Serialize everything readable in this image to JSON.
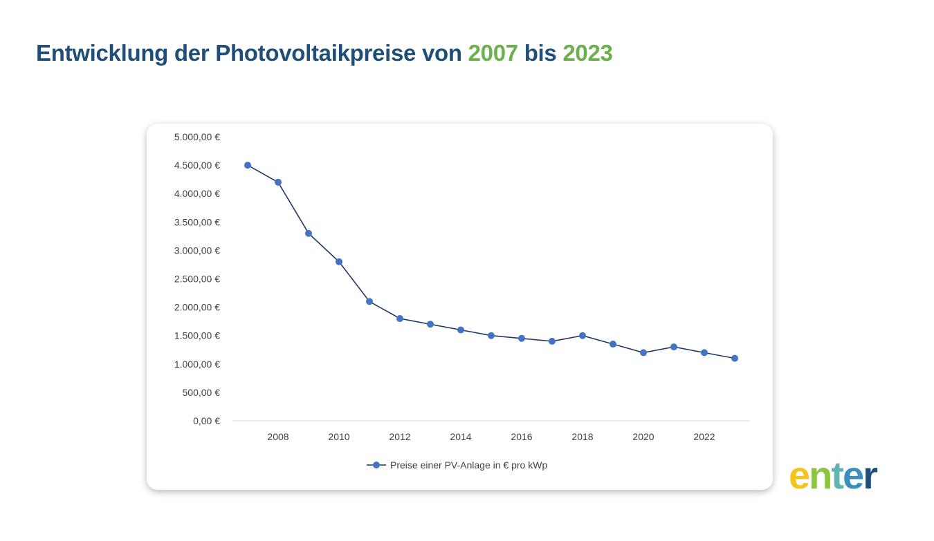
{
  "header": {
    "title_part1": "Entwicklung der Photovoltaikpreise von",
    "year_start": "2007",
    "title_mid": "bis",
    "year_end": "2023"
  },
  "logo": {
    "text": "enter",
    "letters": [
      "e",
      "n",
      "t",
      "e",
      "r"
    ],
    "letter_colors": [
      "#f4c51c",
      "#8cc63f",
      "#5fb5b0",
      "#3a8fc0",
      "#1f4e79"
    ]
  },
  "colors": {
    "title": "#1f4e79",
    "accent": "#6ab04c",
    "series": "#4472c4",
    "series_line": "#203864"
  },
  "chart_data": {
    "type": "line",
    "title": "",
    "xlabel": "",
    "ylabel": "",
    "x": [
      2007,
      2008,
      2009,
      2010,
      2011,
      2012,
      2013,
      2014,
      2015,
      2016,
      2017,
      2018,
      2019,
      2020,
      2021,
      2022,
      2023
    ],
    "series": [
      {
        "name": "Preise einer PV-Anlage in € pro kWp",
        "values": [
          4500,
          4200,
          3300,
          2800,
          2100,
          1800,
          1700,
          1600,
          1500,
          1450,
          1400,
          1500,
          1350,
          1200,
          1300,
          1200,
          1100
        ]
      }
    ],
    "xticks": [
      "2008",
      "2010",
      "2012",
      "2014",
      "2016",
      "2018",
      "2020",
      "2022"
    ],
    "yticks": [
      "0,00 €",
      "500,00 €",
      "1.000,00 €",
      "1.500,00 €",
      "2.000,00 €",
      "2.500,00 €",
      "3.000,00 €",
      "3.500,00 €",
      "4.000,00 €",
      "4.500,00 €",
      "5.000,00 €"
    ],
    "ylim": [
      0,
      5000
    ],
    "xlim": [
      2006.5,
      2023.5
    ],
    "grid": false,
    "legend": "bottom"
  }
}
